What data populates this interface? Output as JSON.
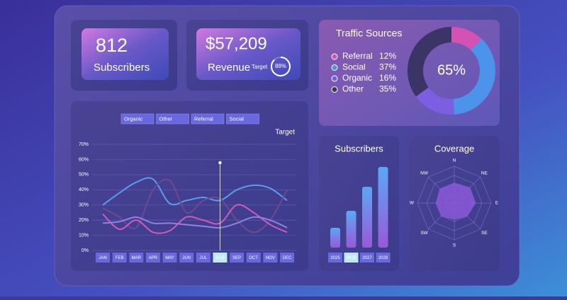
{
  "kpis": [
    {
      "value": "812",
      "label": "Subscribers"
    },
    {
      "value": "$57,209",
      "label": "Revenue",
      "target": {
        "label": "Target",
        "value": 88,
        "value_label": "88%"
      }
    }
  ],
  "chart_data": [
    {
      "type": "pie",
      "title": "Traffic Sources",
      "center_label": "65%",
      "categories": [
        "Referral",
        "Social",
        "Organic",
        "Other"
      ],
      "values": [
        12,
        37,
        16,
        35
      ],
      "value_labels": [
        "12%",
        "37%",
        "16%",
        "35%"
      ],
      "colors": [
        "#d452b4",
        "#4c93ec",
        "#7b5fe0",
        "#3b3466"
      ]
    },
    {
      "type": "line",
      "annotation": "Target",
      "categories": [
        "JAN",
        "FEB",
        "MAR",
        "APR",
        "MAY",
        "JUN",
        "JUL",
        "AUG",
        "SEP",
        "OCT",
        "NOV",
        "DEC"
      ],
      "highlight_index": 7,
      "series": [
        {
          "name": "Organic",
          "color": "#5a9cf0",
          "values": [
            30,
            38,
            45,
            47,
            31,
            33,
            35,
            33,
            40,
            43,
            41,
            33
          ]
        },
        {
          "name": "Other",
          "color": "#6e4a8a",
          "values": [
            28,
            22,
            15,
            40,
            46,
            25,
            33,
            34,
            20,
            12,
            20,
            40
          ]
        },
        {
          "name": "Referral",
          "color": "#d05ab8",
          "values": [
            24,
            14,
            20,
            12,
            13,
            22,
            20,
            18,
            30,
            25,
            17,
            12
          ]
        },
        {
          "name": "Social",
          "color": "#8f80e6",
          "values": [
            18,
            19,
            22,
            18,
            18,
            17,
            16,
            15,
            18,
            22,
            20,
            15
          ]
        }
      ],
      "ylim": [
        0,
        70
      ],
      "yticks": [
        {
          "value": 0,
          "label": "0%"
        },
        {
          "value": 10,
          "label": "10%"
        },
        {
          "value": 20,
          "label": "20%"
        },
        {
          "value": 30,
          "label": "30%"
        },
        {
          "value": 40,
          "label": "40%"
        },
        {
          "value": 50,
          "label": "50%"
        },
        {
          "value": 60,
          "label": "60%"
        },
        {
          "value": 70,
          "label": "70%"
        }
      ],
      "grid": true
    },
    {
      "type": "bar",
      "title": "Subscribers",
      "categories": [
        "2025",
        "2026",
        "2027",
        "2028"
      ],
      "values": [
        14,
        26,
        43,
        57
      ],
      "ylim": [
        0,
        60
      ],
      "highlight_index": 1,
      "color": "#6f6ae8"
    },
    {
      "type": "radar",
      "title": "Coverage",
      "categories": [
        "N",
        "NE",
        "E",
        "SE",
        "S",
        "SW",
        "W",
        "NW"
      ],
      "values": [
        55,
        60,
        58,
        50,
        45,
        50,
        50,
        55
      ],
      "ylim": [
        0,
        100
      ],
      "color": "#8a58d8"
    }
  ]
}
